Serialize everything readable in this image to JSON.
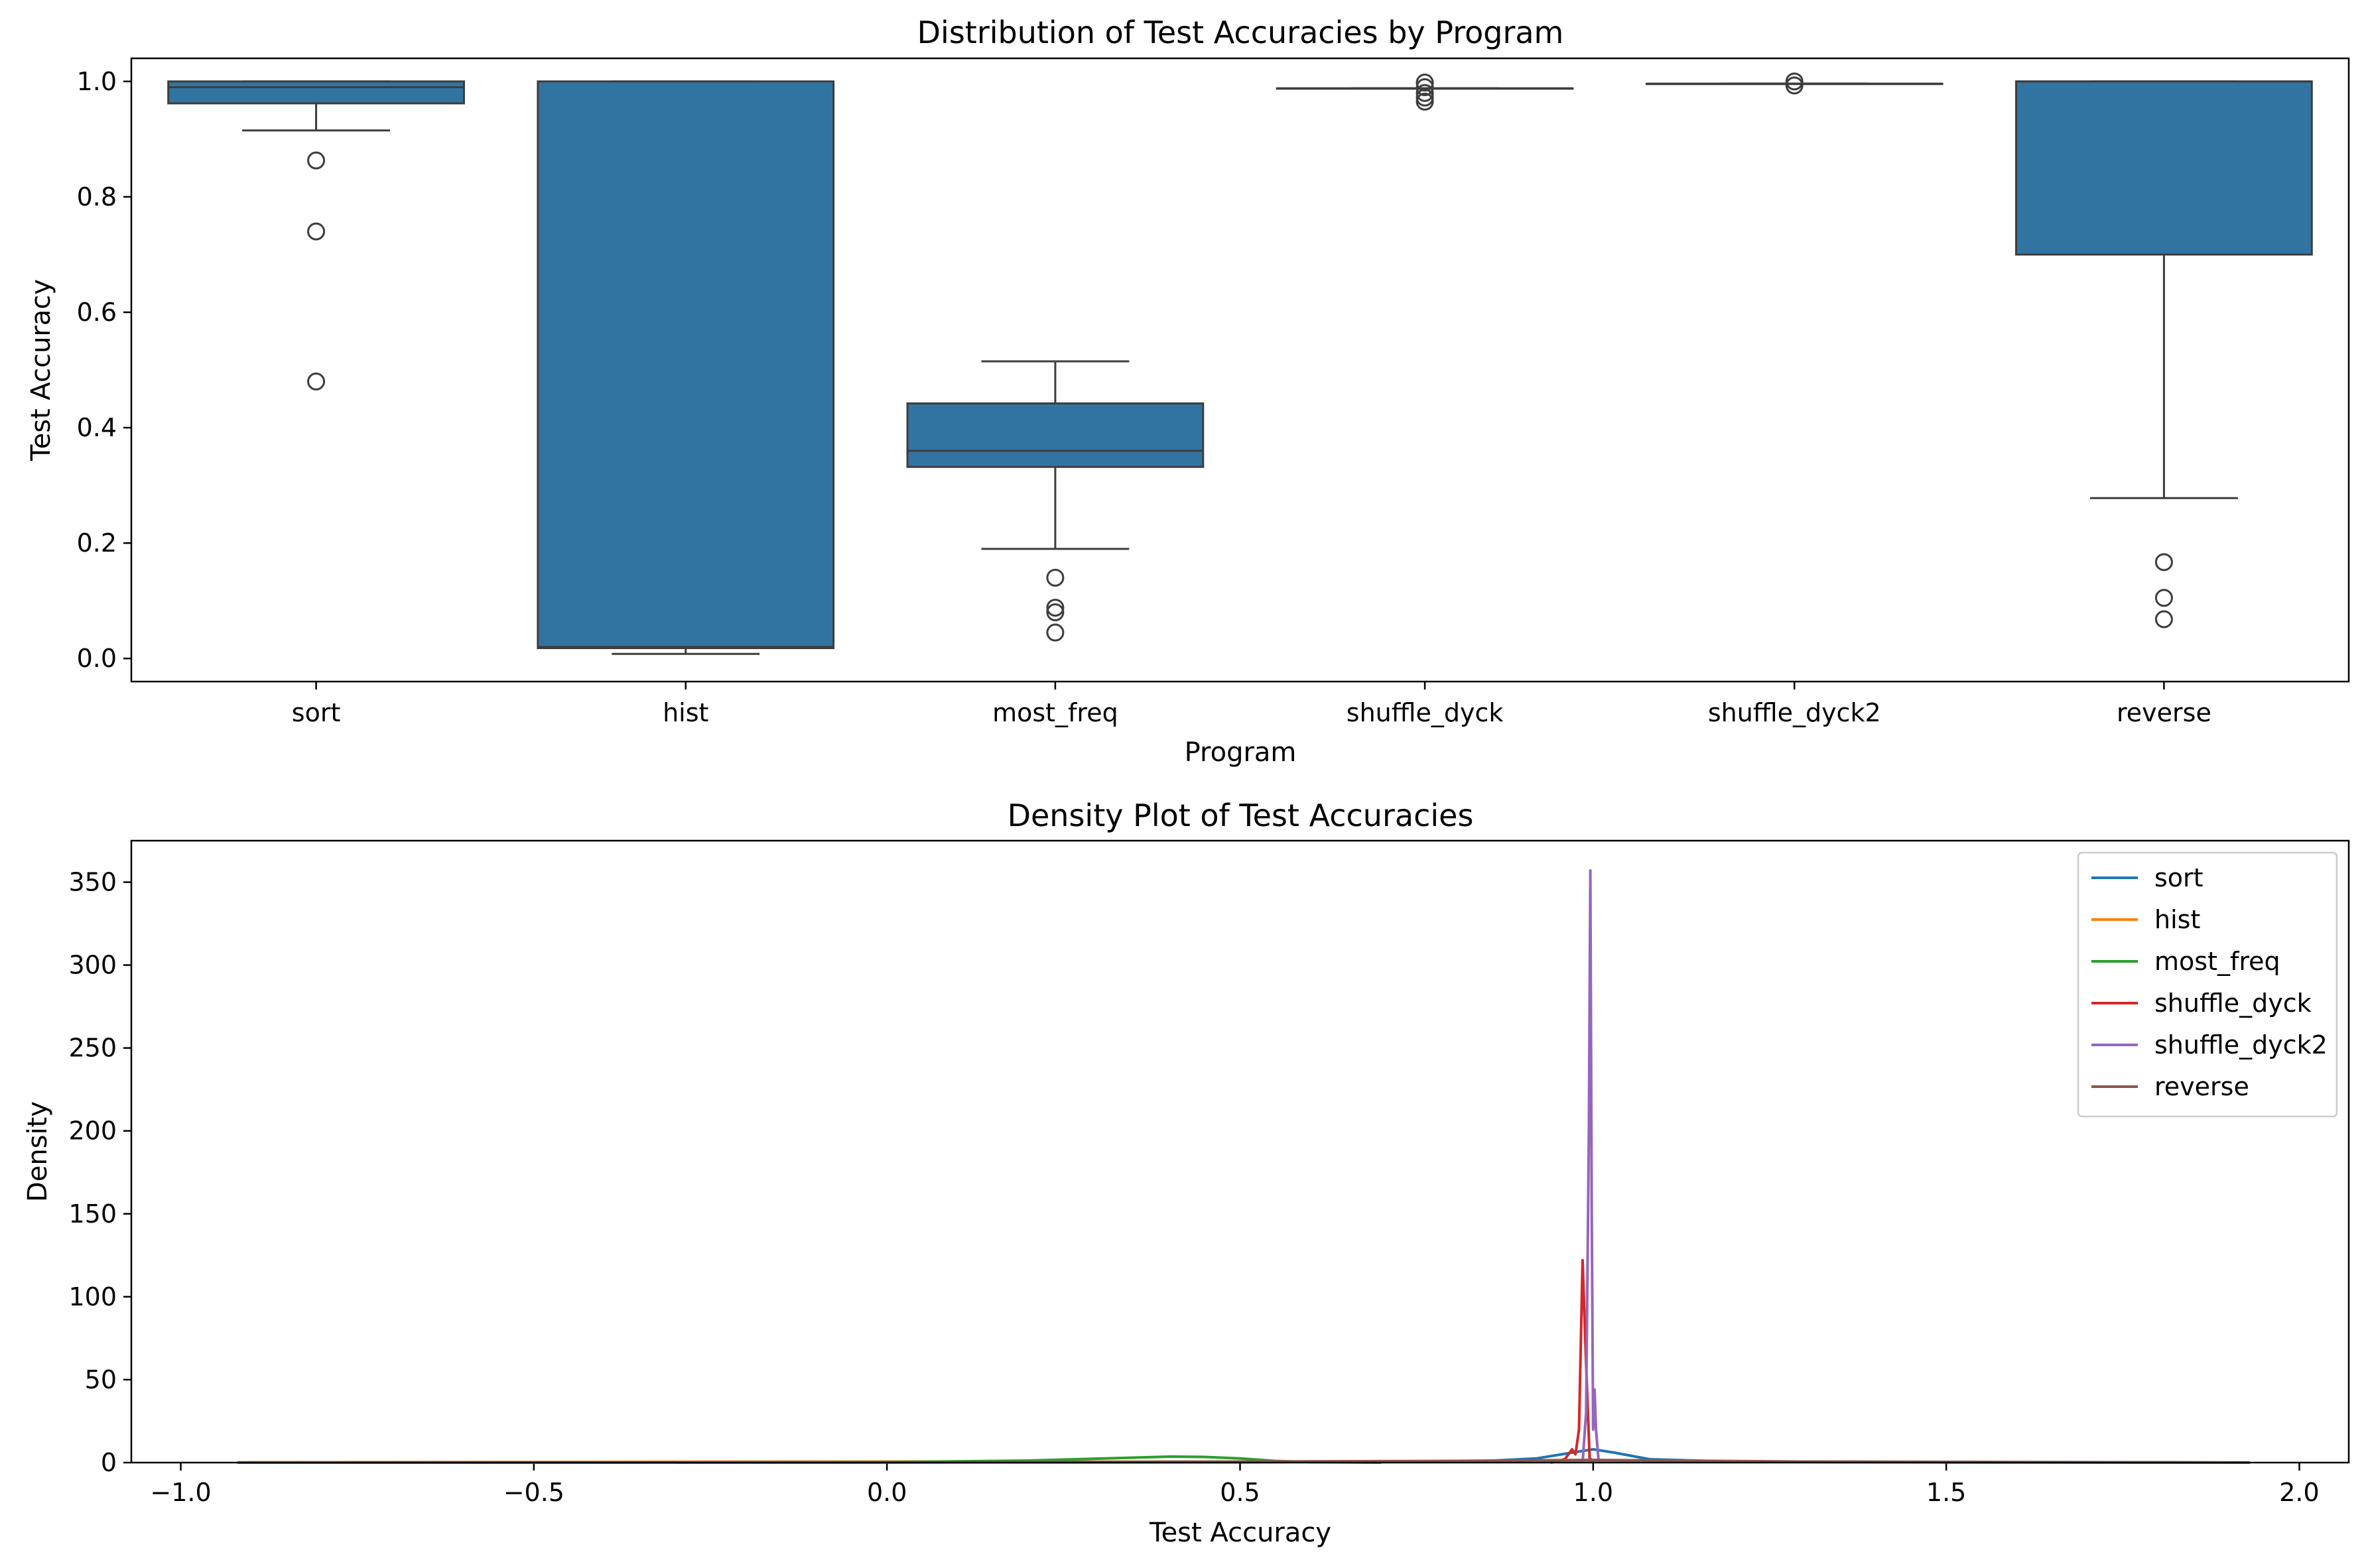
{
  "chart_data": [
    {
      "type": "box",
      "title": "Distribution of Test Accuracies by Program",
      "xlabel": "Program",
      "ylabel": "Test Accuracy",
      "ylim": [
        -0.04,
        1.04
      ],
      "yticks": [
        "0.0",
        "0.2",
        "0.4",
        "0.6",
        "0.8",
        "1.0"
      ],
      "box_color": "#3274a1",
      "categories": [
        "sort",
        "hist",
        "most_freq",
        "shuffle_dyck",
        "shuffle_dyck2",
        "reverse"
      ],
      "boxes": [
        {
          "name": "sort",
          "whisker_low": 0.915,
          "q1": 0.962,
          "median": 0.99,
          "q3": 1.0,
          "whisker_high": 1.0,
          "outliers": [
            0.863,
            0.74,
            0.48
          ]
        },
        {
          "name": "hist",
          "whisker_low": 0.008,
          "q1": 0.018,
          "median": 0.02,
          "q3": 1.0,
          "whisker_high": 1.0,
          "outliers": []
        },
        {
          "name": "most_freq",
          "whisker_low": 0.19,
          "q1": 0.332,
          "median": 0.36,
          "q3": 0.442,
          "whisker_high": 0.515,
          "outliers": [
            0.14,
            0.088,
            0.08,
            0.045
          ]
        },
        {
          "name": "shuffle_dyck",
          "whisker_low": 0.988,
          "q1": 0.988,
          "median": 0.988,
          "q3": 0.988,
          "whisker_high": 0.988,
          "outliers": [
            0.998,
            0.99,
            0.98,
            0.972,
            0.965
          ]
        },
        {
          "name": "shuffle_dyck2",
          "whisker_low": 0.996,
          "q1": 0.996,
          "median": 0.996,
          "q3": 0.996,
          "whisker_high": 0.996,
          "outliers": [
            1.0,
            0.993
          ]
        },
        {
          "name": "reverse",
          "whisker_low": 0.278,
          "q1": 0.7,
          "median": 1.0,
          "q3": 1.0,
          "whisker_high": 1.0,
          "outliers": [
            0.167,
            0.105,
            0.068
          ]
        }
      ]
    },
    {
      "type": "line",
      "title": "Density Plot of Test Accuracies",
      "xlabel": "Test Accuracy",
      "ylabel": "Density",
      "xlim": [
        -1.07,
        2.07
      ],
      "ylim": [
        0,
        375
      ],
      "xticks": [
        "−1.0",
        "−0.5",
        "0.0",
        "0.5",
        "1.0",
        "1.5",
        "2.0"
      ],
      "yticks": [
        "0",
        "50",
        "100",
        "150",
        "200",
        "250",
        "300",
        "350"
      ],
      "legend_position": "top-right",
      "series": [
        {
          "name": "sort",
          "color": "#1f77b4",
          "points": [
            [
              -0.92,
              0
            ],
            [
              0.5,
              0.2
            ],
            [
              0.85,
              1.0
            ],
            [
              0.92,
              2.5
            ],
            [
              0.97,
              6
            ],
            [
              1.0,
              8
            ],
            [
              1.03,
              6
            ],
            [
              1.08,
              2
            ],
            [
              1.2,
              0.5
            ],
            [
              1.5,
              0.1
            ],
            [
              1.93,
              0
            ]
          ]
        },
        {
          "name": "hist",
          "color": "#ff7f0e",
          "points": [
            [
              -0.92,
              0.1
            ],
            [
              -0.5,
              0.3
            ],
            [
              0.0,
              0.6
            ],
            [
              0.3,
              0.5
            ],
            [
              0.5,
              0.5
            ],
            [
              0.8,
              0.5
            ],
            [
              1.0,
              0.7
            ],
            [
              1.3,
              0.4
            ],
            [
              1.6,
              0.2
            ],
            [
              1.93,
              0.05
            ]
          ]
        },
        {
          "name": "most_freq",
          "color": "#2ca02c",
          "points": [
            [
              -0.3,
              0
            ],
            [
              0.0,
              0.3
            ],
            [
              0.2,
              1.2
            ],
            [
              0.3,
              2.4
            ],
            [
              0.4,
              3.6
            ],
            [
              0.45,
              3.4
            ],
            [
              0.5,
              2.5
            ],
            [
              0.55,
              1.0
            ],
            [
              0.6,
              0.3
            ],
            [
              0.7,
              0
            ]
          ]
        },
        {
          "name": "shuffle_dyck",
          "color": "#d62728",
          "points": [
            [
              0.94,
              0
            ],
            [
              0.96,
              2
            ],
            [
              0.97,
              8
            ],
            [
              0.975,
              5
            ],
            [
              0.98,
              20
            ],
            [
              0.985,
              122
            ],
            [
              0.99,
              60
            ],
            [
              0.995,
              3
            ],
            [
              1.0,
              0
            ]
          ]
        },
        {
          "name": "shuffle_dyck2",
          "color": "#9467bd",
          "points": [
            [
              0.985,
              0
            ],
            [
              0.99,
              30
            ],
            [
              0.994,
              200
            ],
            [
              0.996,
              357
            ],
            [
              0.998,
              150
            ],
            [
              1.0,
              20
            ],
            [
              1.002,
              44
            ],
            [
              1.004,
              20
            ],
            [
              1.008,
              0
            ]
          ]
        },
        {
          "name": "reverse",
          "color": "#8c564b",
          "points": [
            [
              -0.92,
              0
            ],
            [
              0.0,
              0.1
            ],
            [
              0.5,
              0.6
            ],
            [
              0.8,
              1.0
            ],
            [
              1.0,
              1.6
            ],
            [
              1.3,
              0.6
            ],
            [
              1.93,
              0
            ]
          ]
        }
      ]
    }
  ]
}
